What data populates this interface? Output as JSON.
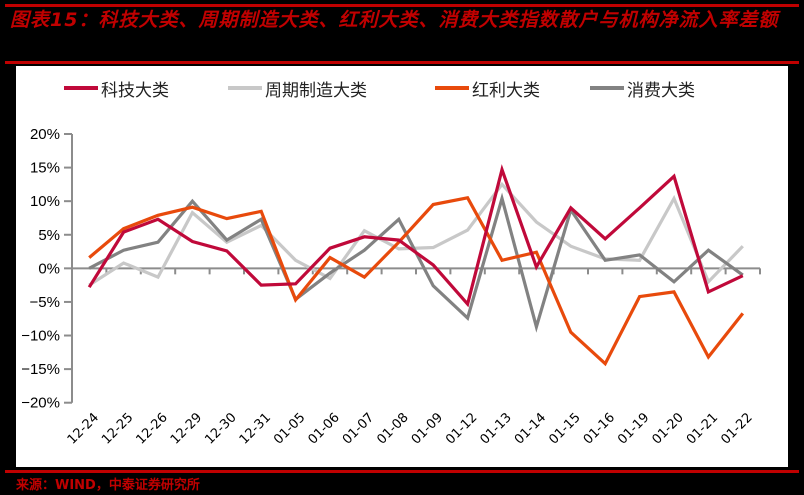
{
  "title": "图表15：科技大类、周期制造大类、红利大类、消费大类指数散户与机构净流入率差额",
  "source": "来源：WIND，中泰证券研究所",
  "colors": {
    "tech": "#c0093a",
    "cyclical": "#c8c8c8",
    "dividend": "#e84a0c",
    "consumer": "#828282",
    "rule": "#c00000",
    "axis": "#8c8c8c"
  },
  "legend": [
    {
      "key": "tech",
      "label": "科技大类"
    },
    {
      "key": "cyclical",
      "label": "周期制造大类"
    },
    {
      "key": "dividend",
      "label": "红利大类"
    },
    {
      "key": "consumer",
      "label": "消费大类"
    }
  ],
  "chart_data": {
    "type": "line",
    "title": "科技大类、周期制造大类、红利大类、消费大类指数散户与机构净流入率差额",
    "xlabel": "",
    "ylabel": "",
    "ylim": [
      -20,
      20
    ],
    "yticks": [
      "20%",
      "15%",
      "10%",
      "5%",
      "0%",
      "-5%",
      "-10%",
      "-15%",
      "-20%"
    ],
    "grid": false,
    "legend_position": "top",
    "categories": [
      "12-24",
      "12-25",
      "12-26",
      "12-29",
      "12-30",
      "12-31",
      "01-05",
      "01-06",
      "01-07",
      "01-08",
      "01-09",
      "01-12",
      "01-13",
      "01-14",
      "01-15",
      "01-16",
      "01-19",
      "01-20",
      "01-21",
      "01-22"
    ],
    "series": [
      {
        "key": "tech",
        "name": "科技大类",
        "values": [
          -2.8,
          5.4,
          7.3,
          4.0,
          2.6,
          -2.5,
          -2.3,
          3.0,
          4.7,
          4.2,
          0.5,
          -5.3,
          14.7,
          0.2,
          9.0,
          4.4,
          9.0,
          13.7,
          -3.5,
          -1.1
        ]
      },
      {
        "key": "cyclical",
        "name": "周期制造大类",
        "values": [
          -2.5,
          0.8,
          -1.3,
          8.3,
          3.9,
          6.4,
          1.2,
          -1.5,
          5.6,
          2.9,
          3.1,
          5.7,
          12.5,
          6.9,
          3.3,
          1.4,
          1.2,
          10.4,
          -2.0,
          3.3
        ]
      },
      {
        "key": "dividend",
        "name": "红利大类",
        "values": [
          1.6,
          5.9,
          7.9,
          9.1,
          7.4,
          8.5,
          -4.7,
          1.6,
          -1.3,
          3.9,
          9.5,
          10.5,
          1.2,
          2.4,
          -9.5,
          -14.2,
          -4.2,
          -3.5,
          -13.2,
          -6.7
        ]
      },
      {
        "key": "consumer",
        "name": "消费大类",
        "values": [
          0.0,
          2.7,
          3.9,
          10.0,
          4.2,
          7.3,
          -4.6,
          -0.7,
          2.7,
          7.3,
          -2.6,
          -7.4,
          10.4,
          -8.7,
          8.7,
          1.2,
          2.0,
          -2.0,
          2.7,
          -1.0
        ]
      }
    ]
  }
}
